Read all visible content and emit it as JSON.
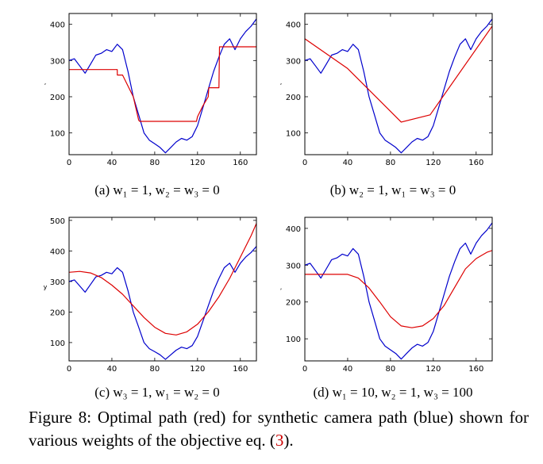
{
  "caption": {
    "label": "Figure 8:",
    "text": "Optimal path (red) for synthetic camera path (blue) shown for various weights of the objective eq. (",
    "ref": "3",
    "end": ")."
  },
  "colors": {
    "blue": "#0000cc",
    "red": "#dd0000",
    "axis": "#000000"
  },
  "chart_data": [
    {
      "type": "line",
      "subcaption": "(a) w₁ = 1, w₂ = w₃ = 0",
      "xlim": [
        0,
        175
      ],
      "ylim": [
        40,
        430
      ],
      "xticks": [
        0,
        40,
        80,
        120,
        160
      ],
      "yticks": [
        100,
        200,
        300,
        400
      ],
      "ylabel": ",",
      "series": [
        {
          "name": "camera path (blue)",
          "color": "blue",
          "x": [
            0,
            5,
            10,
            15,
            20,
            25,
            30,
            35,
            40,
            45,
            50,
            55,
            60,
            65,
            70,
            75,
            80,
            85,
            90,
            95,
            100,
            105,
            110,
            115,
            120,
            125,
            130,
            135,
            140,
            145,
            150,
            155,
            160,
            165,
            170,
            175
          ],
          "y": [
            300,
            305,
            285,
            265,
            290,
            315,
            320,
            330,
            325,
            345,
            330,
            270,
            200,
            150,
            100,
            80,
            70,
            60,
            45,
            60,
            75,
            85,
            80,
            90,
            120,
            170,
            220,
            270,
            310,
            345,
            360,
            330,
            360,
            380,
            395,
            415
          ]
        },
        {
          "name": "optimal path (red)",
          "color": "red",
          "x": [
            0,
            45,
            45.1,
            50,
            60,
            65,
            66,
            119,
            120,
            125,
            130,
            130.5,
            140,
            140.5,
            150,
            175
          ],
          "y": [
            275,
            275,
            260,
            260,
            200,
            135,
            132,
            132,
            145,
            175,
            200,
            225,
            225,
            338,
            338,
            338
          ]
        }
      ]
    },
    {
      "type": "line",
      "subcaption": "(b) w₂ = 1, w₁ = w₃ = 0",
      "xlim": [
        0,
        175
      ],
      "ylim": [
        40,
        430
      ],
      "xticks": [
        0,
        40,
        80,
        120,
        160
      ],
      "yticks": [
        100,
        200,
        300,
        400
      ],
      "ylabel": ",",
      "series": [
        {
          "name": "camera path (blue)",
          "color": "blue",
          "x": [
            0,
            5,
            10,
            15,
            20,
            25,
            30,
            35,
            40,
            45,
            50,
            55,
            60,
            65,
            70,
            75,
            80,
            85,
            90,
            95,
            100,
            105,
            110,
            115,
            120,
            125,
            130,
            135,
            140,
            145,
            150,
            155,
            160,
            165,
            170,
            175
          ],
          "y": [
            300,
            305,
            285,
            265,
            290,
            315,
            320,
            330,
            325,
            345,
            330,
            270,
            200,
            150,
            100,
            80,
            70,
            60,
            45,
            60,
            75,
            85,
            80,
            90,
            120,
            170,
            220,
            270,
            310,
            345,
            360,
            330,
            360,
            380,
            395,
            415
          ]
        },
        {
          "name": "optimal path (red)",
          "color": "red",
          "x": [
            0,
            40,
            90,
            117,
            175
          ],
          "y": [
            360,
            278,
            130,
            150,
            395
          ]
        }
      ]
    },
    {
      "type": "line",
      "subcaption": "(c) w₃ = 1, w₁ = w₂ = 0",
      "xlim": [
        0,
        175
      ],
      "ylim": [
        40,
        510
      ],
      "xticks": [
        0,
        40,
        80,
        120,
        160
      ],
      "yticks": [
        100,
        200,
        300,
        400,
        500
      ],
      "ylabel": "y",
      "series": [
        {
          "name": "camera path (blue)",
          "color": "blue",
          "x": [
            0,
            5,
            10,
            15,
            20,
            25,
            30,
            35,
            40,
            45,
            50,
            55,
            60,
            65,
            70,
            75,
            80,
            85,
            90,
            95,
            100,
            105,
            110,
            115,
            120,
            125,
            130,
            135,
            140,
            145,
            150,
            155,
            160,
            165,
            170,
            175
          ],
          "y": [
            300,
            305,
            285,
            265,
            290,
            315,
            320,
            330,
            325,
            345,
            330,
            270,
            200,
            150,
            100,
            80,
            70,
            60,
            45,
            60,
            75,
            85,
            80,
            90,
            120,
            170,
            220,
            270,
            310,
            345,
            360,
            330,
            360,
            380,
            395,
            415
          ]
        },
        {
          "name": "optimal path (red)",
          "color": "red",
          "x": [
            0,
            10,
            20,
            30,
            40,
            50,
            60,
            70,
            80,
            90,
            100,
            110,
            120,
            130,
            140,
            150,
            160,
            170,
            175
          ],
          "y": [
            330,
            333,
            328,
            313,
            288,
            258,
            220,
            182,
            150,
            130,
            125,
            135,
            160,
            200,
            250,
            310,
            380,
            450,
            490
          ]
        }
      ]
    },
    {
      "type": "line",
      "subcaption": "(d) w₁ = 10, w₂ = 1, w₃ = 100",
      "xlim": [
        0,
        175
      ],
      "ylim": [
        40,
        430
      ],
      "xticks": [
        0,
        40,
        80,
        120,
        160
      ],
      "yticks": [
        100,
        200,
        300,
        400
      ],
      "ylabel": ",",
      "series": [
        {
          "name": "camera path (blue)",
          "color": "blue",
          "x": [
            0,
            5,
            10,
            15,
            20,
            25,
            30,
            35,
            40,
            45,
            50,
            55,
            60,
            65,
            70,
            75,
            80,
            85,
            90,
            95,
            100,
            105,
            110,
            115,
            120,
            125,
            130,
            135,
            140,
            145,
            150,
            155,
            160,
            165,
            170,
            175
          ],
          "y": [
            300,
            305,
            285,
            265,
            290,
            315,
            320,
            330,
            325,
            345,
            330,
            270,
            200,
            150,
            100,
            80,
            70,
            60,
            45,
            60,
            75,
            85,
            80,
            90,
            120,
            170,
            220,
            270,
            310,
            345,
            360,
            330,
            360,
            380,
            395,
            415
          ]
        },
        {
          "name": "optimal path (red)",
          "color": "red",
          "x": [
            0,
            40,
            50,
            60,
            70,
            80,
            90,
            100,
            110,
            120,
            130,
            140,
            150,
            160,
            170,
            175
          ],
          "y": [
            275,
            275,
            265,
            238,
            200,
            160,
            135,
            130,
            135,
            155,
            190,
            240,
            290,
            318,
            335,
            340
          ]
        }
      ]
    }
  ]
}
